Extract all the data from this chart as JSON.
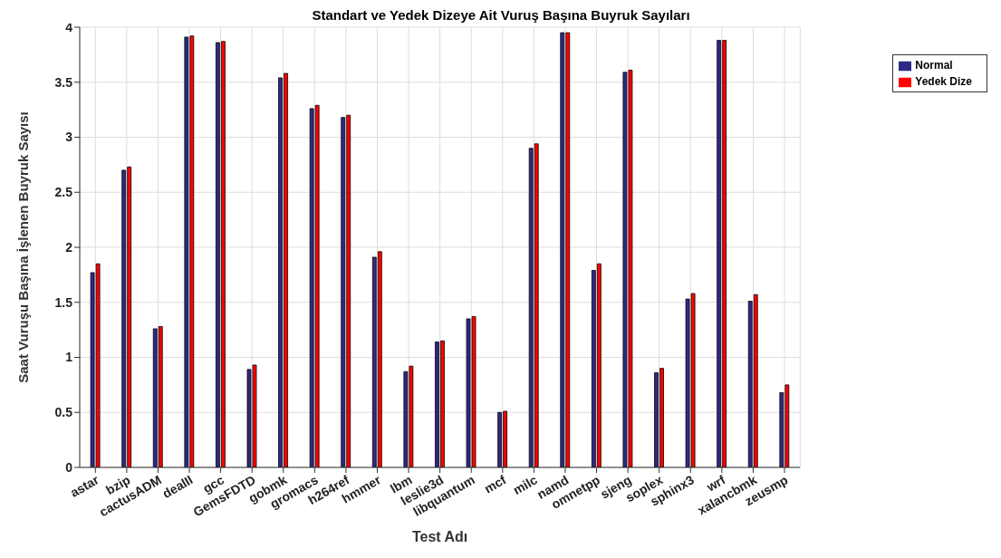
{
  "chart_data": {
    "type": "bar",
    "title": "Standart ve Yedek Dizeye Ait Vuruş Başına Buyruk Sayıları",
    "xlabel": "Test Adı",
    "ylabel": "Saat Vuruşu Başına İşlenen Buyruk Sayısı",
    "categories": [
      "astar",
      "bzip",
      "cactusADM",
      "dealII",
      "gcc",
      "GemsFDTD",
      "gobmk",
      "gromacs",
      "h264ref",
      "hmmer",
      "lbm",
      "leslie3d",
      "libquantum",
      "mcf",
      "milc",
      "namd",
      "omnetpp",
      "sjeng",
      "soplex",
      "sphinx3",
      "wrf",
      "xalancbmk",
      "zeusmp"
    ],
    "series": [
      {
        "name": "Normal",
        "color": "#2e2a84",
        "values": [
          1.77,
          2.7,
          1.26,
          3.91,
          3.86,
          0.89,
          3.54,
          3.26,
          3.18,
          1.91,
          0.87,
          1.14,
          1.35,
          0.5,
          2.9,
          3.95,
          1.79,
          3.59,
          0.86,
          1.53,
          3.88,
          1.51,
          0.68
        ]
      },
      {
        "name": "Yedek Dize",
        "color": "#ff0000",
        "values": [
          1.85,
          2.73,
          1.28,
          3.92,
          3.87,
          0.93,
          3.58,
          3.29,
          3.2,
          1.96,
          0.92,
          1.15,
          1.37,
          0.51,
          2.94,
          3.95,
          1.85,
          3.61,
          0.9,
          1.58,
          3.88,
          1.57,
          0.75
        ]
      }
    ],
    "ylim": [
      0,
      4
    ],
    "yticks": [
      0,
      0.5,
      1,
      1.5,
      2,
      2.5,
      3,
      3.5,
      4
    ],
    "grid": true,
    "legend": "top right"
  }
}
